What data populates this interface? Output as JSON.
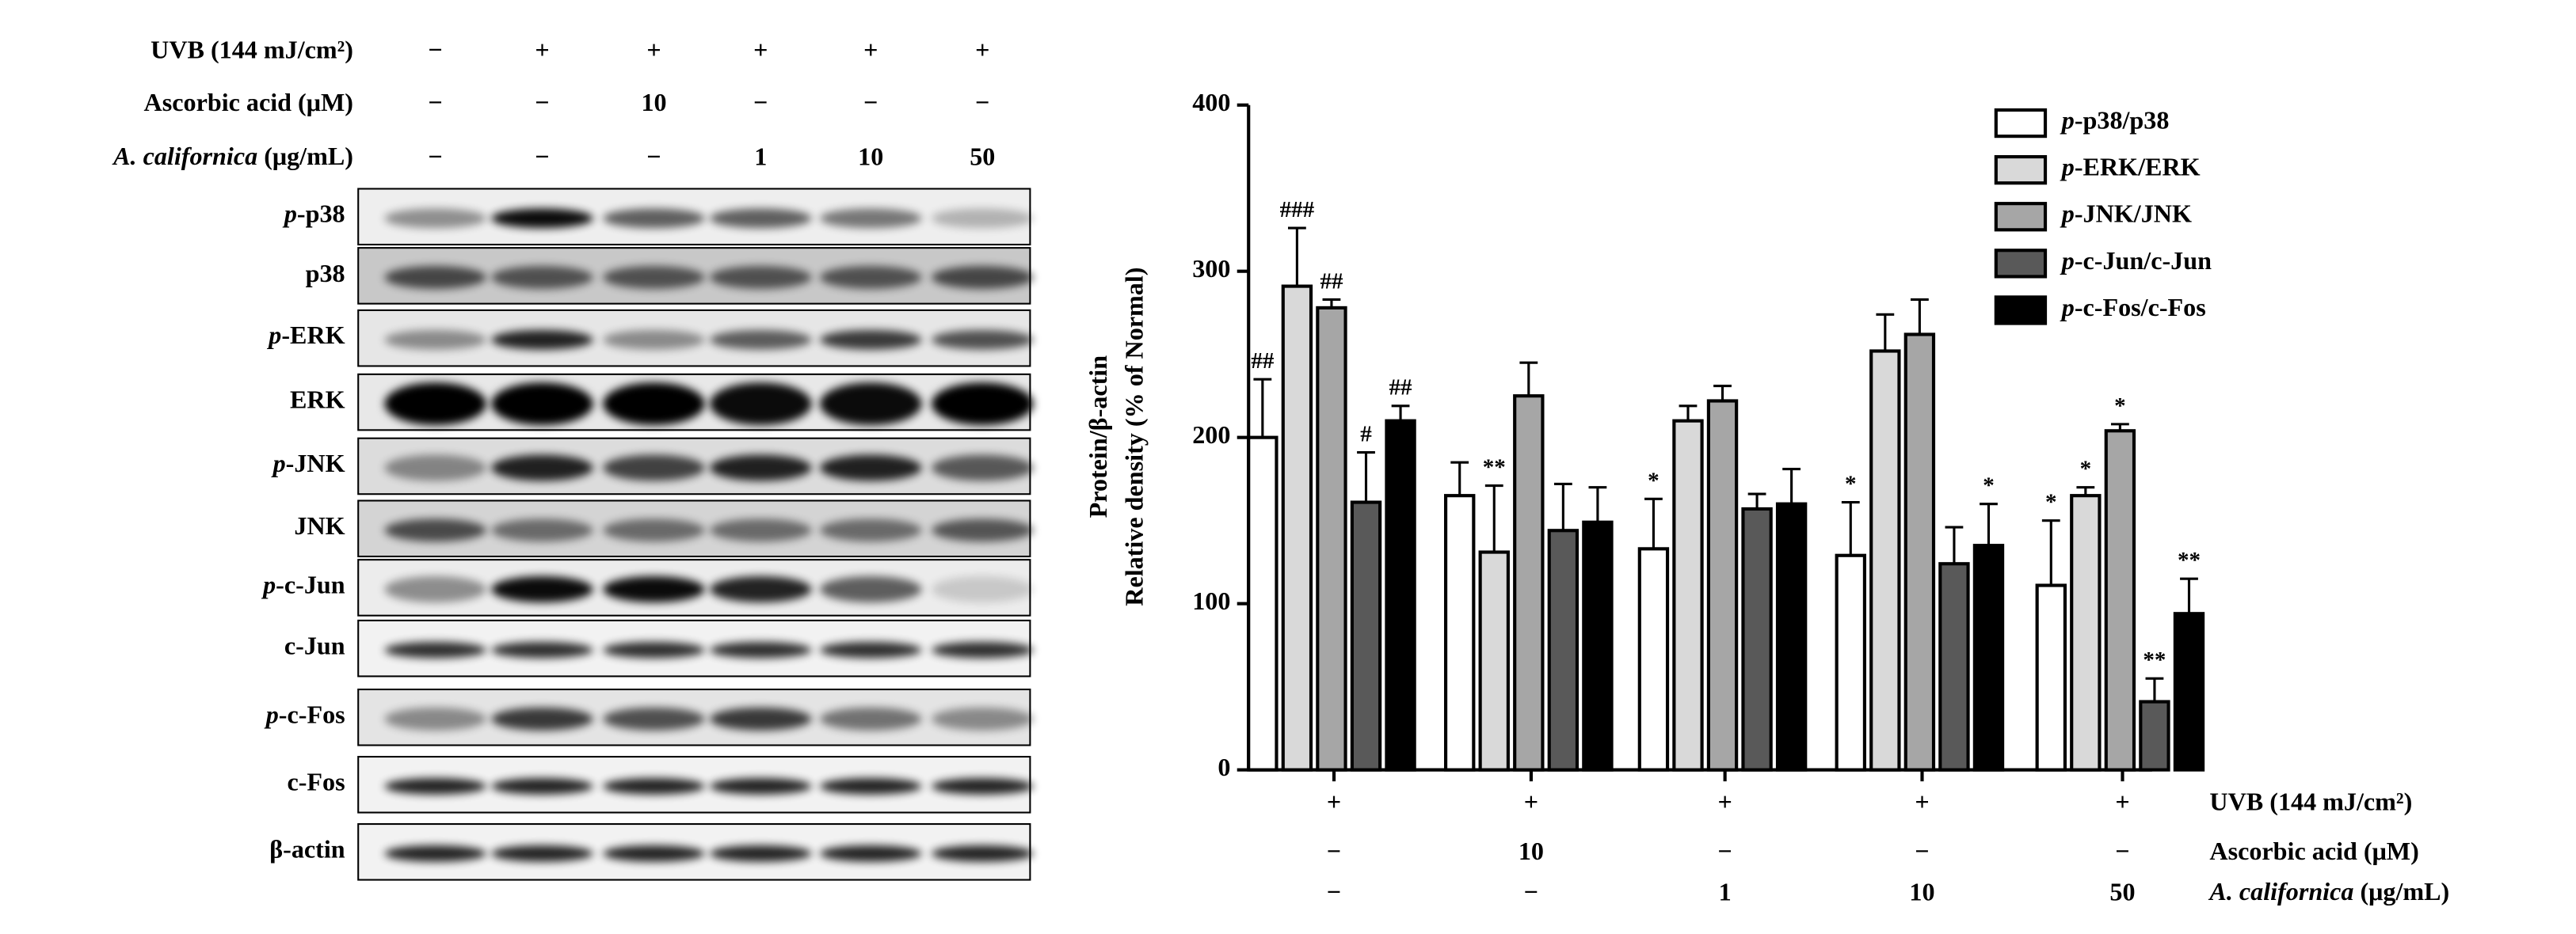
{
  "blot": {
    "conditions": [
      {
        "label": "UVB (144 mJ/cm²)",
        "values": [
          "−",
          "+",
          "+",
          "+",
          "+",
          "+"
        ]
      },
      {
        "label": "Ascorbic acid (μM)",
        "values": [
          "−",
          "−",
          "10",
          "−",
          "−",
          "−"
        ]
      },
      {
        "label": "A. californica (μg/mL)",
        "values": [
          "−",
          "−",
          "−",
          "1",
          "10",
          "50"
        ]
      }
    ],
    "rows": [
      "p-p38",
      "p38",
      "p-ERK",
      "ERK",
      "p-JNK",
      "JNK",
      "p-c-Jun",
      "c-Jun",
      "p-c-Fos",
      "c-Fos",
      "β-actin"
    ]
  },
  "chart_data": {
    "type": "bar",
    "y_label": [
      "Protein/β-actin",
      "Relative density (% of Normal)"
    ],
    "ylim": [
      0,
      400
    ],
    "yticks": [
      0,
      100,
      200,
      300,
      400
    ],
    "conditions": [
      {
        "label": "UVB (144 mJ/cm²)",
        "values": [
          "+",
          "+",
          "+",
          "+",
          "+"
        ]
      },
      {
        "label": "Ascorbic acid (μM)",
        "values": [
          "−",
          "10",
          "−",
          "−",
          "−"
        ]
      },
      {
        "label": "A. californica (μg/mL)",
        "values": [
          "−",
          "−",
          "1",
          "10",
          "50"
        ]
      }
    ],
    "series": [
      {
        "name": "p-p38/p38",
        "color": "#ffffff",
        "values": [
          200,
          165,
          133,
          129,
          111
        ],
        "errors": [
          35,
          20,
          30,
          32,
          39
        ],
        "annotations": [
          "##",
          null,
          "*",
          "*",
          "*"
        ]
      },
      {
        "name": "p-ERK/ERK",
        "color": "#d9d9d9",
        "values": [
          291,
          131,
          210,
          252,
          165
        ],
        "errors": [
          35,
          40,
          9,
          22,
          5
        ],
        "annotations": [
          "###",
          "**",
          null,
          null,
          "*"
        ]
      },
      {
        "name": "p-JNK/JNK",
        "color": "#a6a6a6",
        "values": [
          278,
          225,
          222,
          262,
          204
        ],
        "errors": [
          5,
          20,
          9,
          21,
          4
        ],
        "annotations": [
          "##",
          null,
          null,
          null,
          "*"
        ]
      },
      {
        "name": "p-c-Jun/c-Jun",
        "color": "#595959",
        "values": [
          161,
          144,
          157,
          124,
          41
        ],
        "errors": [
          30,
          28,
          9,
          22,
          14
        ],
        "annotations": [
          "#",
          null,
          null,
          null,
          "**"
        ]
      },
      {
        "name": "p-c-Fos/c-Fos",
        "color": "#000000",
        "values": [
          210,
          149,
          160,
          135,
          94
        ],
        "errors": [
          9,
          21,
          21,
          25,
          21
        ],
        "annotations": [
          "##",
          null,
          null,
          "*",
          "**"
        ]
      }
    ]
  }
}
